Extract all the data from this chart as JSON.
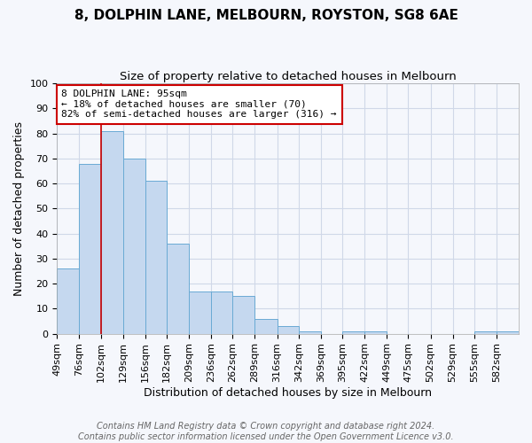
{
  "title": "8, DOLPHIN LANE, MELBOURN, ROYSTON, SG8 6AE",
  "subtitle": "Size of property relative to detached houses in Melbourn",
  "xlabel": "Distribution of detached houses by size in Melbourn",
  "ylabel": "Number of detached properties",
  "categories": [
    "49sqm",
    "76sqm",
    "102sqm",
    "129sqm",
    "156sqm",
    "182sqm",
    "209sqm",
    "236sqm",
    "262sqm",
    "289sqm",
    "316sqm",
    "342sqm",
    "369sqm",
    "395sqm",
    "422sqm",
    "449sqm",
    "475sqm",
    "502sqm",
    "529sqm",
    "555sqm",
    "582sqm"
  ],
  "values": [
    26,
    68,
    81,
    70,
    61,
    36,
    17,
    17,
    15,
    6,
    3,
    1,
    0,
    1,
    1,
    0,
    0,
    0,
    0,
    1,
    1
  ],
  "bin_edges": [
    49,
    76,
    102,
    129,
    156,
    182,
    209,
    236,
    262,
    289,
    316,
    342,
    369,
    395,
    422,
    449,
    475,
    502,
    529,
    555,
    582,
    609
  ],
  "bar_color": "#c5d8ef",
  "bar_edge_color": "#6aaad4",
  "ylim": [
    0,
    100
  ],
  "yticks": [
    0,
    10,
    20,
    30,
    40,
    50,
    60,
    70,
    80,
    90,
    100
  ],
  "vline_x": 102,
  "vline_color": "#cc0000",
  "annotation_line1": "8 DOLPHIN LANE: 95sqm",
  "annotation_line2": "← 18% of detached houses are smaller (70)",
  "annotation_line3": "82% of semi-detached houses are larger (316) →",
  "box_facecolor": "#ffffff",
  "box_edgecolor": "#cc0000",
  "footer1": "Contains HM Land Registry data © Crown copyright and database right 2024.",
  "footer2": "Contains public sector information licensed under the Open Government Licence v3.0.",
  "background_color": "#f5f7fc",
  "plot_bg_color": "#f5f7fc",
  "grid_color": "#d0d8e8",
  "title_fontsize": 11,
  "subtitle_fontsize": 9.5,
  "axis_label_fontsize": 9,
  "tick_fontsize": 8,
  "annotation_fontsize": 8,
  "footer_fontsize": 7
}
